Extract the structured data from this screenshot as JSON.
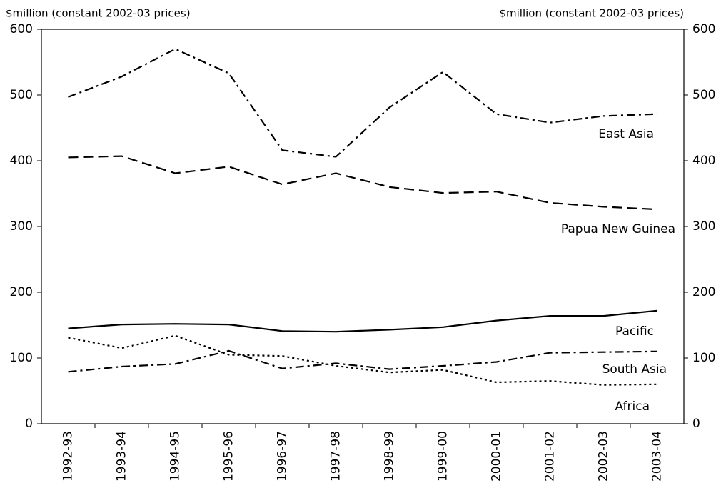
{
  "chart_data": {
    "type": "line",
    "y_label": "$million (constant 2002-03 prices)",
    "y2_label": "$million (constant 2002-03 prices)",
    "categories": [
      "1992-93",
      "1993-94",
      "1994-95",
      "1995-96",
      "1996-97",
      "1997-98",
      "1998-99",
      "1999-00",
      "2000-01",
      "2001-02",
      "2002-03",
      "2003-04"
    ],
    "ylim": [
      0,
      600
    ],
    "yticks": [
      0,
      100,
      200,
      300,
      400,
      500,
      600
    ],
    "y2lim": [
      0,
      600
    ],
    "y2ticks": [
      0,
      100,
      200,
      300,
      400,
      500,
      600
    ],
    "grid": false,
    "series": [
      {
        "name": "East Asia",
        "color": "#000000",
        "style": "dashdot",
        "values": [
          497,
          528,
          570,
          533,
          416,
          406,
          481,
          535,
          471,
          458,
          468,
          471
        ]
      },
      {
        "name": "Papua New Guinea",
        "color": "#000000",
        "style": "dashed",
        "values": [
          405,
          407,
          381,
          391,
          364,
          381,
          360,
          351,
          353,
          336,
          330,
          326
        ]
      },
      {
        "name": "Pacific",
        "color": "#000000",
        "style": "solid",
        "values": [
          145,
          151,
          152,
          151,
          141,
          140,
          143,
          147,
          157,
          164,
          164,
          172
        ]
      },
      {
        "name": "South Asia",
        "color": "#000000",
        "style": "dashdot",
        "values": [
          79,
          87,
          91,
          111,
          84,
          92,
          83,
          88,
          94,
          108,
          109,
          110
        ]
      },
      {
        "name": "Africa",
        "color": "#000000",
        "style": "dotted",
        "values": [
          131,
          115,
          134,
          105,
          103,
          88,
          78,
          82,
          63,
          65,
          59,
          60
        ]
      }
    ]
  }
}
